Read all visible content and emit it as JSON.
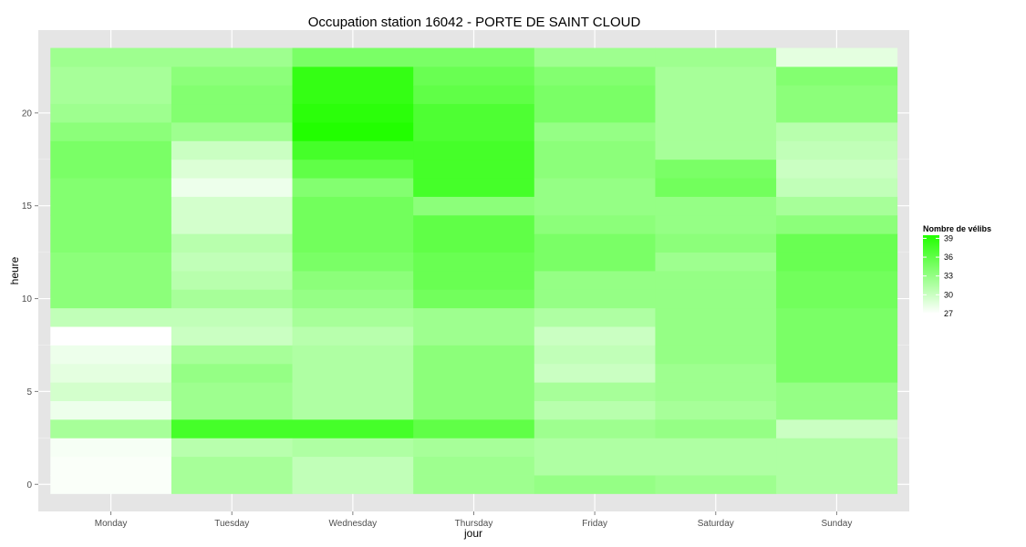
{
  "chart_data": {
    "type": "heatmap",
    "title": "Occupation station 16042 - PORTE DE SAINT CLOUD",
    "xlabel": "jour",
    "ylabel": "heure",
    "x_categories": [
      "Monday",
      "Tuesday",
      "Wednesday",
      "Thursday",
      "Friday",
      "Saturday",
      "Sunday"
    ],
    "y_values": [
      0,
      1,
      2,
      3,
      4,
      5,
      6,
      7,
      8,
      9,
      10,
      11,
      12,
      13,
      14,
      15,
      16,
      17,
      18,
      19,
      20,
      21,
      22,
      23
    ],
    "y_ticks": [
      0,
      5,
      10,
      15,
      20
    ],
    "ylim": [
      -0.5,
      23.5
    ],
    "grid": true,
    "legend": {
      "title": "Nombre de vélibs",
      "position": "right",
      "ticks": [
        39,
        36,
        33,
        30,
        27
      ],
      "min": 27,
      "max": 39.5,
      "low_color": "#ffffff",
      "high_color": "#22ff00"
    },
    "values": {
      "Monday": [
        27.3,
        27.3,
        27.5,
        32.0,
        28.0,
        29.5,
        28.5,
        28.0,
        27.0,
        30.5,
        33.5,
        33.5,
        33.5,
        34.0,
        34.0,
        34.0,
        34.0,
        34.5,
        34.5,
        33.5,
        32.5,
        32.0,
        32.0,
        32.5
      ],
      "Tuesday": [
        32.0,
        32.0,
        31.0,
        37.5,
        32.5,
        32.5,
        33.0,
        32.0,
        30.0,
        30.5,
        32.0,
        31.0,
        30.5,
        31.0,
        29.5,
        29.5,
        28.0,
        29.0,
        30.0,
        32.5,
        34.0,
        34.0,
        33.5,
        32.5
      ],
      "Wednesday": [
        30.5,
        30.5,
        31.5,
        37.5,
        31.5,
        31.5,
        31.5,
        31.5,
        31.0,
        32.0,
        33.0,
        33.5,
        34.5,
        35.0,
        35.0,
        35.0,
        34.0,
        36.0,
        37.5,
        39.5,
        39.0,
        38.5,
        38.5,
        34.5
      ],
      "Thursday": [
        32.5,
        32.5,
        32.0,
        36.0,
        33.5,
        33.5,
        33.5,
        33.5,
        32.5,
        32.5,
        35.0,
        35.5,
        35.5,
        36.0,
        36.0,
        33.5,
        37.5,
        37.5,
        37.5,
        37.0,
        37.0,
        36.0,
        35.5,
        34.5
      ],
      "Friday": [
        33.0,
        31.5,
        31.5,
        32.5,
        31.0,
        32.0,
        30.0,
        30.5,
        30.0,
        31.5,
        33.0,
        33.0,
        34.5,
        34.5,
        33.5,
        33.0,
        33.0,
        33.5,
        33.5,
        33.0,
        34.5,
        34.5,
        34.0,
        32.5
      ],
      "Saturday": [
        32.5,
        31.5,
        31.5,
        33.0,
        32.0,
        32.5,
        32.5,
        33.0,
        33.0,
        33.0,
        33.0,
        33.0,
        32.5,
        33.5,
        33.0,
        33.0,
        35.0,
        34.5,
        32.0,
        32.0,
        32.0,
        32.0,
        32.0,
        32.5
      ],
      "Sunday": [
        31.5,
        31.5,
        31.5,
        30.0,
        33.0,
        33.0,
        34.5,
        34.5,
        34.5,
        34.5,
        35.0,
        35.0,
        35.5,
        35.5,
        33.5,
        32.0,
        30.5,
        30.0,
        30.5,
        31.0,
        33.5,
        33.5,
        34.0,
        28.5
      ]
    }
  }
}
